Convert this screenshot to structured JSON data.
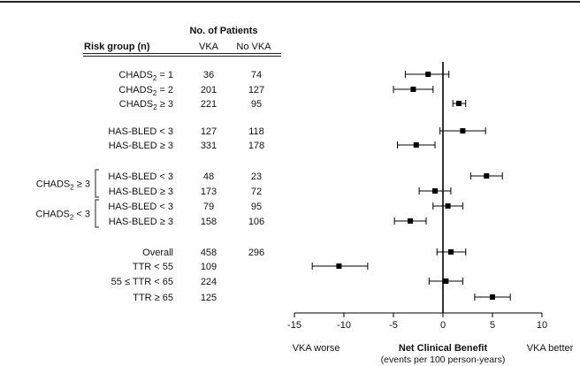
{
  "table": {
    "group_header": "No. of Patients",
    "risk_header": "Risk group (n)",
    "col_vka": "VKA",
    "col_novka": "No VKA"
  },
  "brackets": [
    {
      "label": "CHADS",
      "sub": "2",
      "suffix": " ≥ 3",
      "rows": [
        5,
        6
      ]
    },
    {
      "label": "CHADS",
      "sub": "2",
      "suffix": " < 3",
      "rows": [
        7,
        8
      ]
    }
  ],
  "rows": [
    {
      "label": "CHADS",
      "sub": "2",
      "suffix": " = 1",
      "vka": "36",
      "novka": "74"
    },
    {
      "label": "CHADS",
      "sub": "2",
      "suffix": " = 2",
      "vka": "201",
      "novka": "127"
    },
    {
      "label": "CHADS",
      "sub": "2",
      "suffix": " ≥ 3",
      "vka": "221",
      "novka": "95"
    },
    {
      "label": "HAS-BLED < 3",
      "vka": "127",
      "novka": "118"
    },
    {
      "label": "HAS-BLED ≥ 3",
      "vka": "331",
      "novka": "178"
    },
    {
      "label": "HAS-BLED < 3",
      "vka": "48",
      "novka": "23"
    },
    {
      "label": "HAS-BLED ≥ 3",
      "vka": "173",
      "novka": "72"
    },
    {
      "label": "HAS-BLED < 3",
      "vka": "79",
      "novka": "95"
    },
    {
      "label": "HAS-BLED ≥ 3",
      "vka": "158",
      "novka": "106"
    },
    {
      "label": "Overall",
      "vka": "458",
      "novka": "296"
    },
    {
      "label": "TTR < 55",
      "vka": "109",
      "novka": ""
    },
    {
      "label": "55 ≤ TTR < 65",
      "vka": "224",
      "novka": ""
    },
    {
      "label": "TTR ≥ 65",
      "vka": "125",
      "novka": ""
    }
  ],
  "chart_data": {
    "type": "forest",
    "xlim": [
      -15,
      10
    ],
    "xticks": [
      -15,
      -10,
      -5,
      0,
      5,
      10
    ],
    "xlabel": "Net Clinical Benefit",
    "xlabel_sub": "(events per 100 person-years)",
    "left_annotation": "VKA worse",
    "right_annotation": "VKA better",
    "reference_line": 0,
    "estimates": [
      {
        "est": -1.5,
        "lo": -3.8,
        "hi": 0.6
      },
      {
        "est": -3.0,
        "lo": -5.0,
        "hi": -1.0
      },
      {
        "est": 1.6,
        "lo": 1.0,
        "hi": 2.3
      },
      {
        "est": 2.0,
        "lo": -0.3,
        "hi": 4.3
      },
      {
        "est": -2.7,
        "lo": -4.6,
        "hi": -0.8
      },
      {
        "est": 4.4,
        "lo": 2.8,
        "hi": 6.0
      },
      {
        "est": -0.8,
        "lo": -2.4,
        "hi": 0.8
      },
      {
        "est": 0.5,
        "lo": -1.0,
        "hi": 2.0
      },
      {
        "est": -3.3,
        "lo": -4.9,
        "hi": -1.7
      },
      {
        "est": 0.8,
        "lo": -0.6,
        "hi": 2.3
      },
      {
        "est": -10.5,
        "lo": -13.2,
        "hi": -7.6
      },
      {
        "est": 0.3,
        "lo": -1.4,
        "hi": 2.0
      },
      {
        "est": 5.0,
        "lo": 3.2,
        "hi": 6.8
      }
    ]
  }
}
